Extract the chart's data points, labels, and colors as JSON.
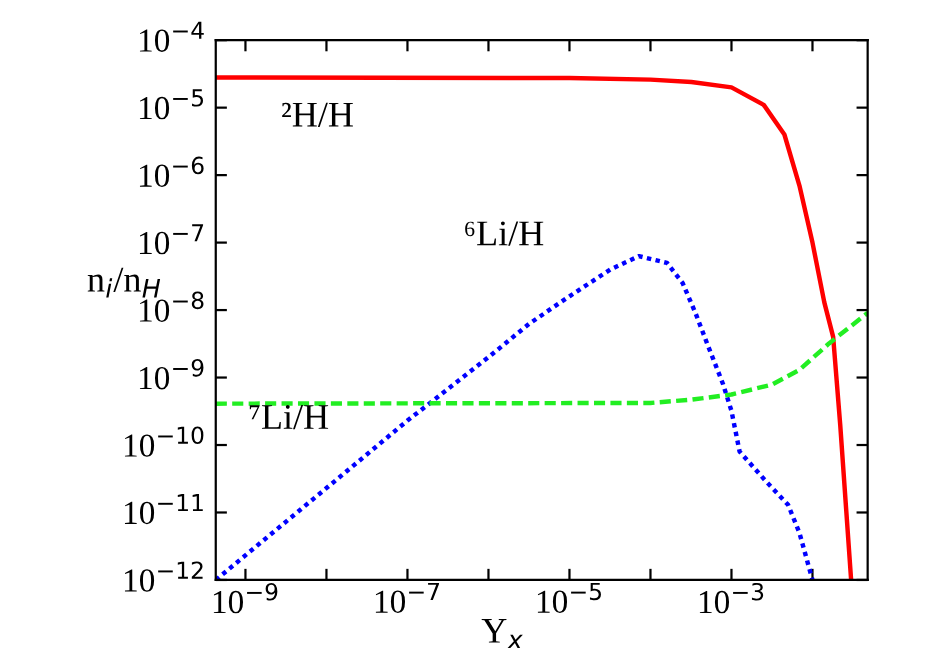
{
  "chart_data": {
    "type": "line",
    "xlabel": "Y$_{x}$",
    "ylabel": "n$_{i}$/n$_{H}$",
    "log": "xy",
    "grid": false,
    "legend": false,
    "xlim": [
      4.3e-10,
      0.048
    ],
    "ylim": [
      1e-12,
      0.0001
    ],
    "xticks": [
      {
        "value": 1e-09,
        "label": "10$^{−9}$"
      },
      {
        "value": 1e-08,
        "label": null
      },
      {
        "value": 1e-07,
        "label": "10$^{−7}$"
      },
      {
        "value": 1e-06,
        "label": null
      },
      {
        "value": 1e-05,
        "label": "10$^{−5}$"
      },
      {
        "value": 0.0001,
        "label": null
      },
      {
        "value": 0.001,
        "label": "10$^{−3}$"
      },
      {
        "value": 0.01,
        "label": null
      }
    ],
    "yticks": [
      {
        "value": 1e-12,
        "label": "10$^{−12}$"
      },
      {
        "value": 1e-11,
        "label": "10$^{−11}$"
      },
      {
        "value": 1e-10,
        "label": "10$^{−10}$"
      },
      {
        "value": 1e-09,
        "label": "10$^{−9}$"
      },
      {
        "value": 1e-08,
        "label": "10$^{−8}$"
      },
      {
        "value": 1e-07,
        "label": "10$^{−7}$"
      },
      {
        "value": 1e-06,
        "label": "10$^{−6}$"
      },
      {
        "value": 1e-05,
        "label": "10$^{−5}$"
      },
      {
        "value": 0.0001,
        "label": "10$^{−4}$"
      }
    ],
    "series": [
      {
        "name": "²H/H",
        "color": "#ff0000",
        "line_style": "solid",
        "x": [
          4.3e-10,
          1e-05,
          0.0001,
          0.00032,
          0.001,
          0.0025,
          0.0045,
          0.0069,
          0.01,
          0.014,
          0.018,
          0.022,
          0.03
        ],
        "values": [
          2.8e-05,
          2.75e-05,
          2.6e-05,
          2.4e-05,
          2e-05,
          1.1e-05,
          4e-06,
          7e-07,
          1e-07,
          1.3e-08,
          4e-09,
          2e-10,
          1e-12
        ]
      },
      {
        "name": "⁶Li/H",
        "color": "#0000ff",
        "line_style": "dotted",
        "x": [
          4.3e-10,
          1e-08,
          1e-07,
          1e-06,
          3.2e-06,
          1e-05,
          3.2e-05,
          7.2e-05,
          0.00016,
          0.00025,
          0.00036,
          0.0005,
          0.00079,
          0.001,
          0.00126,
          0.0026,
          0.005,
          0.0069,
          0.01
        ],
        "values": [
          1e-12,
          2.3e-11,
          2.3e-10,
          2e-09,
          6.3e-09,
          1.6e-08,
          4e-08,
          6.3e-08,
          5e-08,
          2.5e-08,
          9e-09,
          3.2e-09,
          7.9e-10,
          3.2e-10,
          8e-11,
          3e-11,
          1.3e-11,
          5e-12,
          1e-12
        ]
      },
      {
        "name": "⁷Li/H",
        "color": "#22ee22",
        "line_style": "dashed",
        "x": [
          4.3e-10,
          0.0001,
          0.00032,
          0.001,
          0.0032,
          0.0069,
          0.016,
          0.048
        ],
        "values": [
          4.1e-10,
          4.2e-10,
          4.7e-10,
          5.6e-10,
          7.9e-10,
          1.3e-09,
          3.2e-09,
          9.1e-09
        ]
      }
    ]
  }
}
